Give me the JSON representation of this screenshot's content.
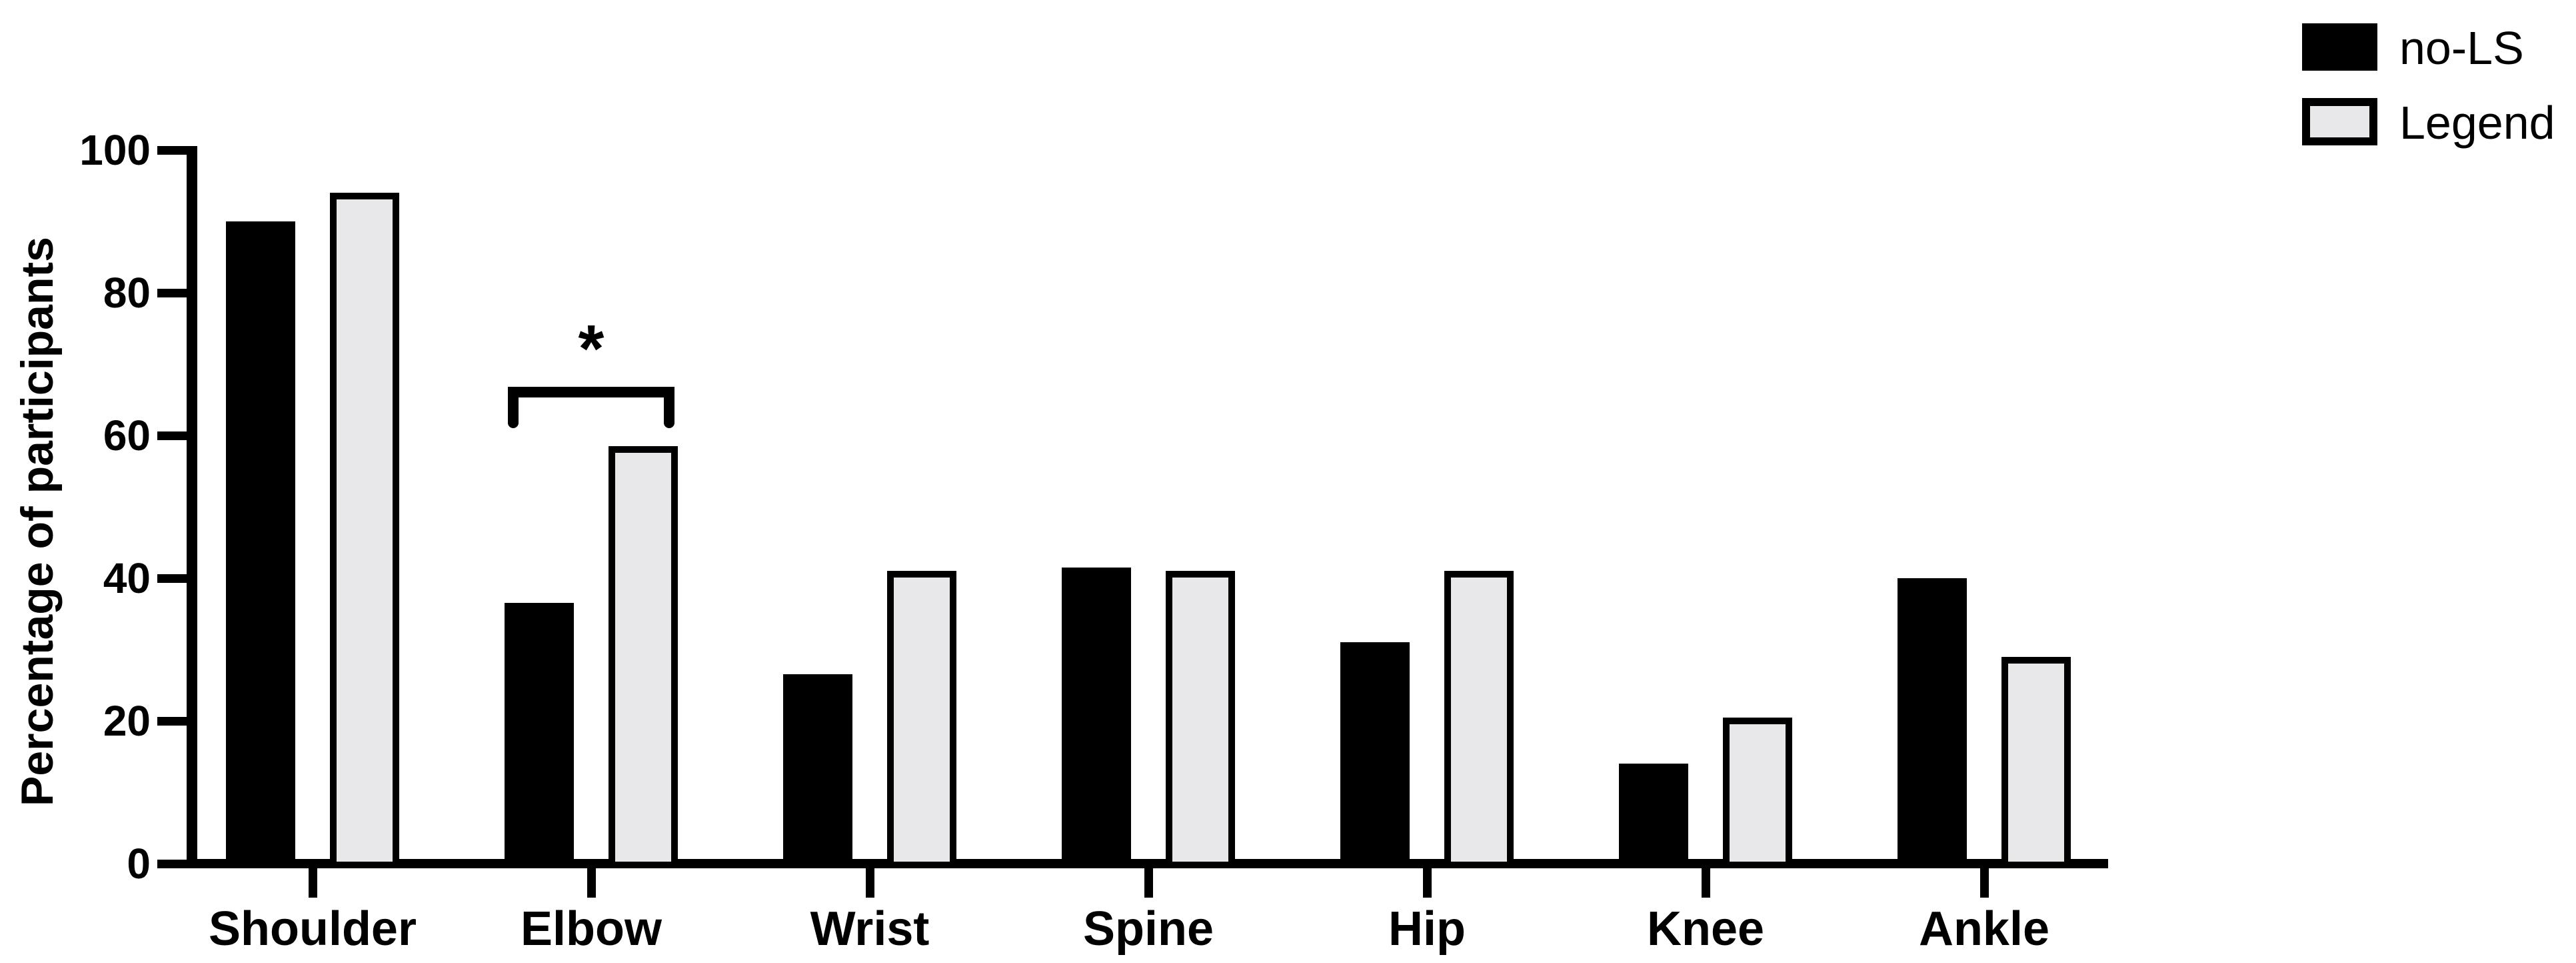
{
  "chart_data": {
    "type": "bar",
    "title": "",
    "ylabel": "Percentage of participants",
    "xlabel": "",
    "ylim": [
      0,
      100
    ],
    "yticks": [
      0,
      20,
      40,
      60,
      80,
      100
    ],
    "categories": [
      "Shoulder",
      "Elbow",
      "Wrist",
      "Spine",
      "Hip",
      "Knee",
      "Ankle"
    ],
    "series": [
      {
        "name": "no-LS",
        "style": "solid",
        "fill": "#000000",
        "values": [
          90,
          36.5,
          26.5,
          41.5,
          31,
          14,
          40
        ]
      },
      {
        "name": "Legend",
        "style": "outlined",
        "fill": "#e8e8ea",
        "outline": "#000000",
        "values": [
          94,
          58.5,
          41,
          41,
          41,
          20.5,
          29
        ]
      }
    ],
    "grid": false,
    "legend_position": "top-right",
    "annotations": [
      {
        "type": "significance-bracket",
        "category": "Elbow",
        "series_compared": [
          "no-LS",
          "Legend"
        ],
        "label": "*"
      }
    ]
  },
  "legend": {
    "items": [
      {
        "label": "no-LS",
        "swatch": "solid"
      },
      {
        "label": "Legend",
        "swatch": "outlined"
      }
    ]
  }
}
